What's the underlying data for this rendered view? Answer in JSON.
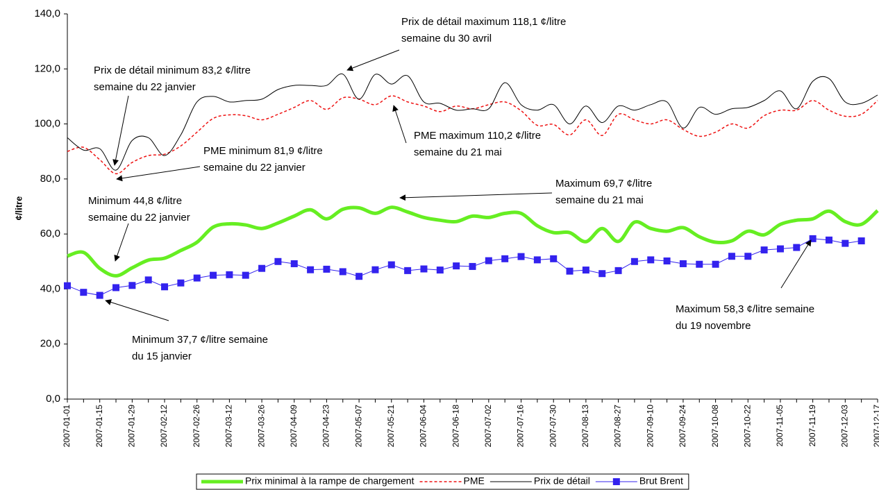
{
  "chart_data": {
    "type": "line",
    "y_label": "¢/litre",
    "categories": [
      "2007-01-01",
      null,
      "2007-01-15",
      null,
      "2007-01-29",
      null,
      "2007-02-12",
      null,
      "2007-02-26",
      null,
      "2007-03-12",
      null,
      "2007-03-26",
      null,
      "2007-04-09",
      null,
      "2007-04-23",
      null,
      "2007-05-07",
      null,
      "2007-05-21",
      null,
      "2007-06-04",
      null,
      "2007-06-18",
      null,
      "2007-07-02",
      null,
      "2007-07-16",
      null,
      "2007-07-30",
      null,
      "2007-08-13",
      null,
      "2007-08-27",
      null,
      "2007-09-10",
      null,
      "2007-09-24",
      null,
      "2007-10-08",
      null,
      "2007-10-22",
      null,
      "2007-11-05",
      null,
      "2007-11-19",
      null,
      "2007-12-03",
      null,
      "2007-12-17"
    ],
    "ylim": [
      0,
      140
    ],
    "yticks": [
      {
        "value": 0,
        "label": "0,0"
      },
      {
        "value": 20,
        "label": "20,0"
      },
      {
        "value": 40,
        "label": "40,0"
      },
      {
        "value": 60,
        "label": "60,0"
      },
      {
        "value": 80,
        "label": "80,0"
      },
      {
        "value": 100,
        "label": "100,0"
      },
      {
        "value": 120,
        "label": "120,0"
      },
      {
        "value": 140,
        "label": "140,0"
      }
    ],
    "grid": false,
    "legend": "bottom",
    "series": [
      {
        "name": "Prix minimal à la rampe de chargement",
        "color": "#66ee22",
        "line_width": 5,
        "dash": "solid",
        "smooth": true,
        "values": [
          52,
          53.3,
          47.5,
          44.8,
          47.7,
          50.5,
          51.2,
          54,
          57,
          62.5,
          63.7,
          63.3,
          62,
          64,
          66.5,
          68.8,
          65.5,
          69,
          69.5,
          67.5,
          69.7,
          68,
          66,
          65,
          64.5,
          66.5,
          66,
          67.5,
          67.5,
          63,
          60.5,
          60.5,
          57.2,
          62,
          57.3,
          64.3,
          62,
          61,
          62.3,
          59,
          57,
          57.5,
          61,
          59.7,
          63.5,
          65,
          65.5,
          68.3,
          64.5,
          63.5,
          68.5
        ]
      },
      {
        "name": "PME",
        "color": "#ee1111",
        "line_width": 1.5,
        "dash": "dashed",
        "smooth": true,
        "values": [
          90,
          91.5,
          87,
          81.9,
          86,
          88.5,
          89,
          92,
          97,
          102,
          103.3,
          103,
          101.5,
          103.5,
          106,
          108.5,
          105.3,
          109.5,
          109,
          107,
          110.2,
          108,
          106.5,
          104.5,
          106.5,
          105.5,
          107,
          108,
          104.8,
          99.5,
          99.8,
          96,
          101.5,
          95.8,
          103.5,
          101.5,
          100,
          101.5,
          98,
          95.5,
          97,
          100,
          98.5,
          103,
          105,
          105,
          108.5,
          105,
          102.8,
          103.5,
          108.5
        ]
      },
      {
        "name": "Prix de détail",
        "color": "#000000",
        "line_width": 1,
        "dash": "solid",
        "smooth": true,
        "values": [
          95,
          90.5,
          91,
          83.2,
          94,
          95,
          88.5,
          96,
          108,
          110,
          108,
          108.5,
          109,
          112.5,
          114,
          114,
          114,
          118.1,
          109,
          118,
          114.5,
          117.5,
          108,
          107.5,
          105,
          105.5,
          105.5,
          115,
          107,
          105,
          107,
          100,
          106.5,
          100.5,
          106.5,
          105,
          107,
          108,
          98.5,
          106,
          103.5,
          105.5,
          106,
          108.5,
          112,
          105.5,
          115.5,
          116.5,
          108,
          107.5,
          110.5
        ]
      },
      {
        "name": "Brut Brent",
        "color": "#3322ee",
        "line_width": 1,
        "dash": "solid",
        "smooth": false,
        "marker": "square",
        "values": [
          41.2,
          38.8,
          37.7,
          40.5,
          41.3,
          43.3,
          40.8,
          42.2,
          44,
          45,
          45.2,
          45,
          47.5,
          50,
          49.2,
          47,
          47.2,
          46.3,
          44.6,
          47,
          48.8,
          46.7,
          47.3,
          46.9,
          48.4,
          48.2,
          50.3,
          51,
          51.8,
          50.6,
          51,
          46.5,
          46.9,
          45.6,
          46.7,
          50,
          50.6,
          50.2,
          49.2,
          49,
          49,
          51.9,
          51.9,
          54.2,
          54.6,
          55.1,
          58.3,
          57.8,
          56.6,
          57.5,
          null
        ]
      }
    ],
    "annotations": [
      {
        "lines": [
          "Prix de détail maximum 118,1 ¢/litre",
          "semaine du 30 avril"
        ]
      },
      {
        "lines": [
          "Prix de détail  minimum 83,2 ¢/litre",
          "semaine du 22 janvier"
        ]
      },
      {
        "lines": [
          "PME minimum 81,9 ¢/litre",
          "semaine du 22 janvier"
        ]
      },
      {
        "lines": [
          "PME maximum 110,2 ¢/litre",
          "semaine du 21 mai"
        ]
      },
      {
        "lines": [
          "Maximum 69,7 ¢/litre",
          "semaine du 21 mai"
        ]
      },
      {
        "lines": [
          "Minimum 44,8 ¢/litre",
          "semaine du 22 janvier"
        ]
      },
      {
        "lines": [
          "Maximum 58,3 ¢/litre semaine",
          "du 19 novembre"
        ]
      },
      {
        "lines": [
          "Minimum 37,7 ¢/litre semaine",
          "du 15 janvier"
        ]
      }
    ]
  }
}
